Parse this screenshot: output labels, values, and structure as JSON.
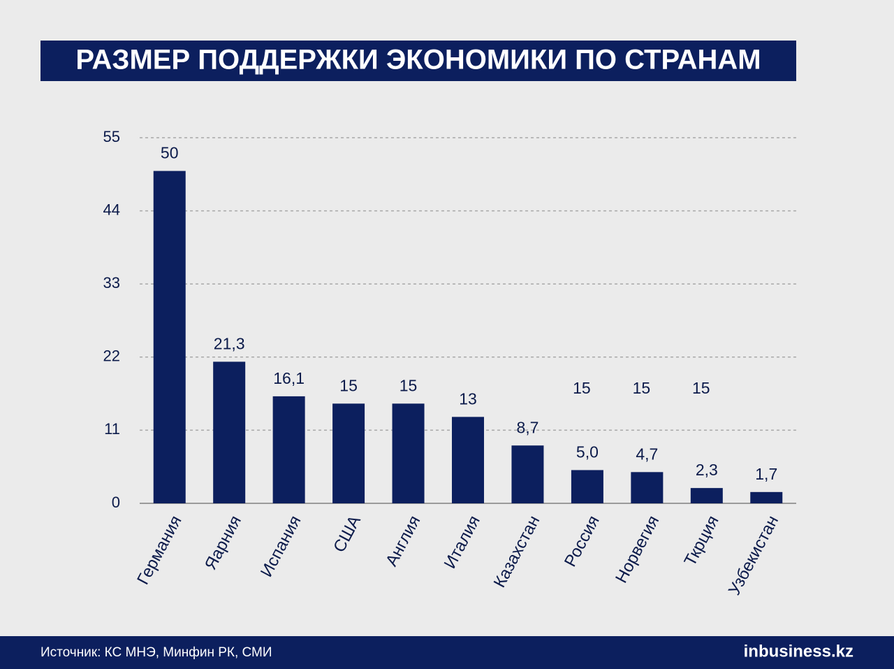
{
  "chart_data": {
    "type": "bar",
    "title": "РАЗМЕР ПОДДЕРЖКИ ЭКОНОМИКИ ПО СТРАНАМ",
    "categories": [
      "Германия",
      "Яарния",
      "Испания",
      "США",
      "Англия",
      "Италия",
      "Казахстан",
      "Россия",
      "Норвегия",
      "Ткрция",
      "Узбекистан"
    ],
    "values": [
      50,
      21.3,
      16.1,
      15,
      15,
      13,
      8.7,
      5.0,
      4.7,
      2.3,
      1.7
    ],
    "value_labels": [
      "50",
      "21,3",
      "16,1",
      "15",
      "15",
      "13",
      "8,7",
      "5,0",
      "4,7",
      "2,3",
      "1,7"
    ],
    "annotations": [
      "15",
      "15",
      "15"
    ],
    "color": "#0c1f5e",
    "ylim": [
      0,
      55
    ],
    "yticks": [
      0,
      11,
      22,
      33,
      44,
      55
    ],
    "grid": true,
    "source": "Источник: КС МНЭ, Минфин РК, СМИ",
    "logo": "inbusiness.kz"
  }
}
